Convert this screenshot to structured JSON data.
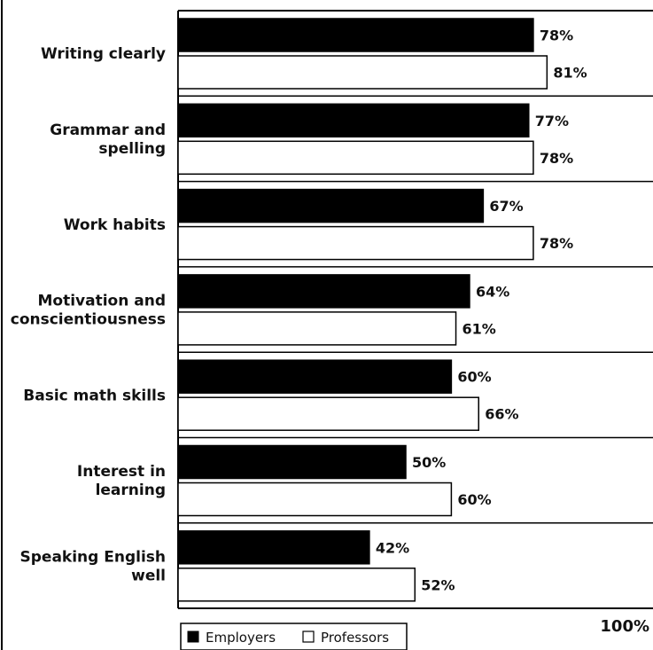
{
  "chart_data": {
    "type": "bar",
    "orientation": "horizontal",
    "categories": [
      [
        "Writing clearly"
      ],
      [
        "Grammar and",
        "spelling"
      ],
      [
        "Work habits"
      ],
      [
        "Motivation and",
        "conscientiousness"
      ],
      [
        "Basic math skills"
      ],
      [
        "Interest in",
        "learning"
      ],
      [
        "Speaking English",
        "well"
      ]
    ],
    "series": [
      {
        "name": "Employers",
        "values": [
          78,
          77,
          67,
          64,
          60,
          50,
          42
        ],
        "labels": [
          "78%",
          "77%",
          "67%",
          "64%",
          "60%",
          "50%",
          "42%"
        ],
        "color": "#000000"
      },
      {
        "name": "Professors",
        "values": [
          81,
          78,
          78,
          61,
          66,
          60,
          52
        ],
        "labels": [
          "81%",
          "78%",
          "78%",
          "61%",
          "66%",
          "60%",
          "52%"
        ],
        "color": "#ffffff"
      }
    ],
    "xlim": [
      0,
      100
    ],
    "axis_max_label": "100%",
    "grid": false,
    "legend_position": "bottom-left"
  }
}
